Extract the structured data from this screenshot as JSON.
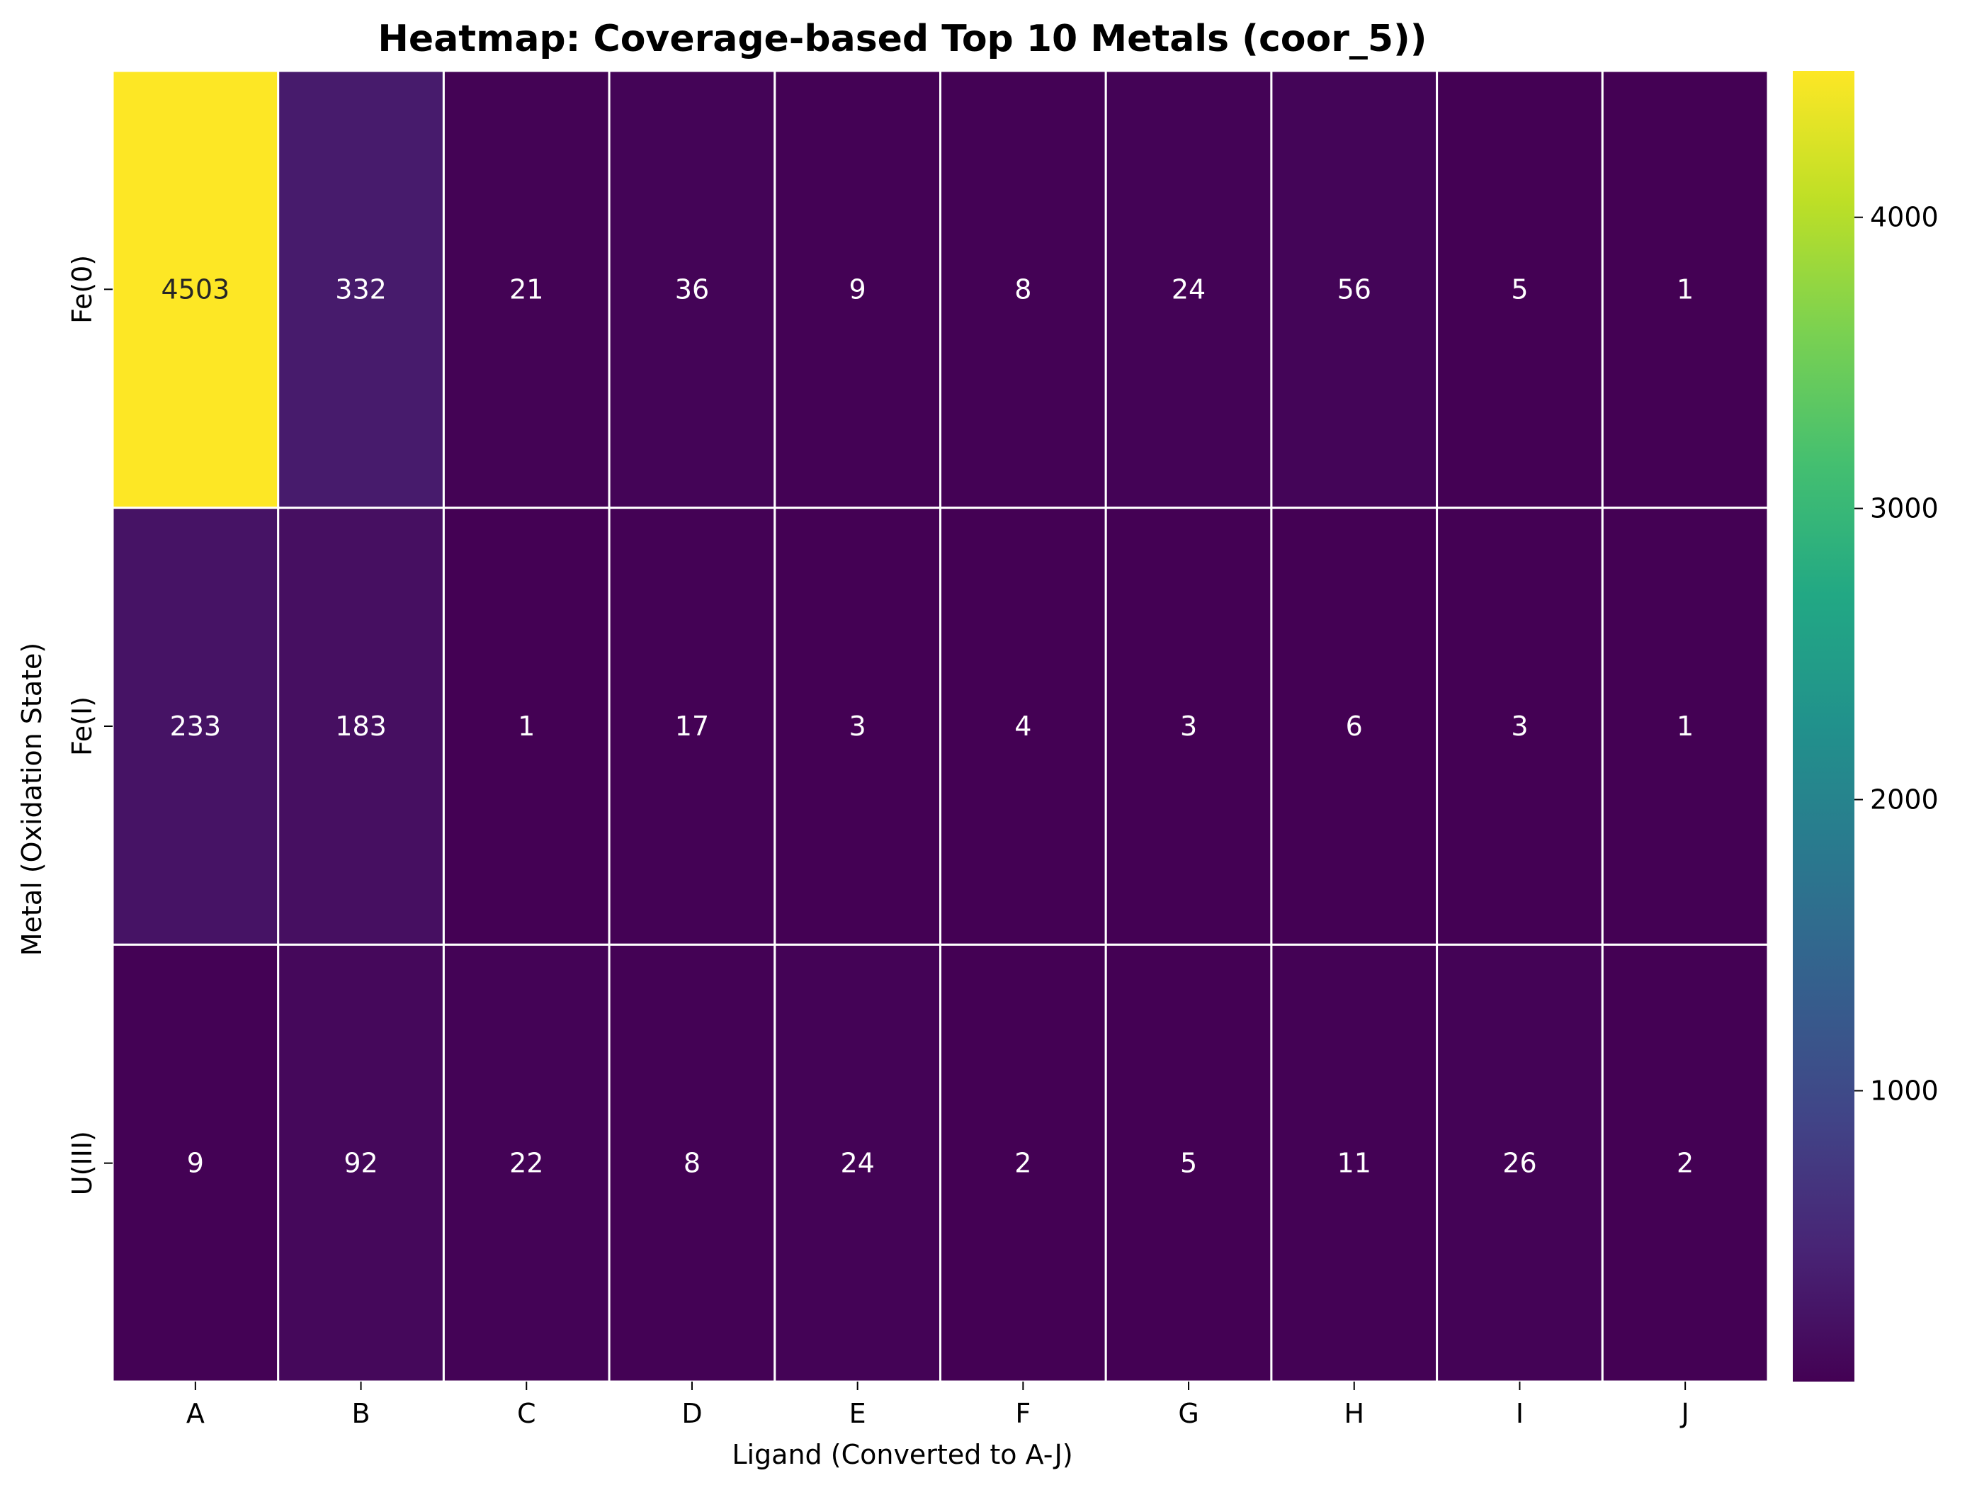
{
  "chart_data": {
    "type": "heatmap",
    "title": "Heatmap: Coverage-based Top 10 Metals (coor_5))",
    "xlabel": "Ligand (Converted to A-J)",
    "ylabel": "Metal (Oxidation State)",
    "x_categories": [
      "A",
      "B",
      "C",
      "D",
      "E",
      "F",
      "G",
      "H",
      "I",
      "J"
    ],
    "y_categories": [
      "Fe(0)",
      "Fe(I)",
      "U(III)"
    ],
    "values": [
      [
        4503,
        332,
        21,
        36,
        9,
        8,
        24,
        56,
        5,
        1
      ],
      [
        233,
        183,
        1,
        17,
        3,
        4,
        3,
        6,
        3,
        1
      ],
      [
        9,
        92,
        22,
        8,
        24,
        2,
        5,
        11,
        26,
        2
      ]
    ],
    "colormap": "viridis",
    "color_range": [
      1,
      4503
    ],
    "colorbar_ticks": [
      1000,
      2000,
      3000,
      4000
    ],
    "annotation_light_color": "#ffffff",
    "annotation_dark_color": "#262626",
    "grid_line_color": "#ffffff"
  }
}
